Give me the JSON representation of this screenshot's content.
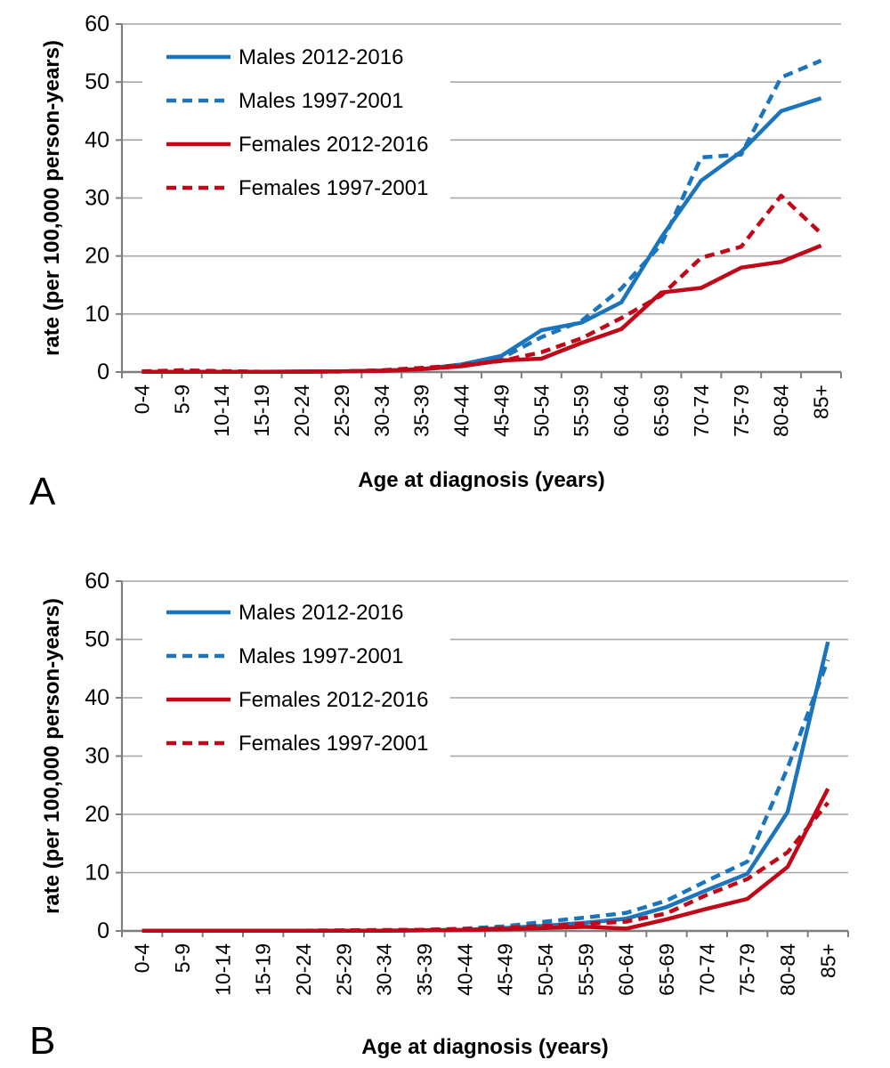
{
  "figure_title": "",
  "styles": {
    "blue": "#1B75BC",
    "red": "#C00818",
    "gridline_color": "#A6A6A6",
    "axis_color": "#7F7F7F",
    "text_color": "#000000",
    "legend_bg": "#FFFFFF"
  },
  "chart_data": [
    {
      "type": "line",
      "panel_label": "A",
      "xlabel": "Age at diagnosis (years)",
      "ylabel": "rate (per 100,000 person-years)",
      "ylim": [
        0,
        60
      ],
      "yticks": [
        0,
        10,
        20,
        30,
        40,
        50,
        60
      ],
      "grid": "horizontal-gridlines-on",
      "legend_position": "top-left-inside",
      "categories": [
        "0-4",
        "5-9",
        "10-14",
        "15-19",
        "20-24",
        "25-29",
        "30-34",
        "35-39",
        "40-44",
        "45-49",
        "50-54",
        "55-59",
        "60-64",
        "65-69",
        "70-74",
        "75-79",
        "80-84",
        "85+"
      ],
      "series": [
        {
          "name": "Males 2012-2016",
          "color": "#1B75BC",
          "dash": "solid",
          "values": [
            0.05,
            0.05,
            0.05,
            0.05,
            0.1,
            0.1,
            0.25,
            0.5,
            1.3,
            2.8,
            7.2,
            8.5,
            12.0,
            23.2,
            33.0,
            38.0,
            45.0,
            47.2
          ]
        },
        {
          "name": "Males 1997-2001",
          "color": "#1B75BC",
          "dash": "dashed",
          "values": [
            0.05,
            0.2,
            0.1,
            0.05,
            0.05,
            0.1,
            0.2,
            0.5,
            1.1,
            2.4,
            6.0,
            8.8,
            14.4,
            22.0,
            37.0,
            37.5,
            50.8,
            53.7
          ]
        },
        {
          "name": "Females 2012-2016",
          "color": "#C00818",
          "dash": "solid",
          "values": [
            0.05,
            0.05,
            0.05,
            0.05,
            0.05,
            0.1,
            0.2,
            0.5,
            1.0,
            2.0,
            2.3,
            5.0,
            7.4,
            13.7,
            14.5,
            18.0,
            19.0,
            21.8
          ]
        },
        {
          "name": "Females 1997-2001",
          "color": "#C00818",
          "dash": "dashed",
          "values": [
            0.1,
            0.3,
            0.15,
            0.05,
            0.05,
            0.1,
            0.3,
            0.7,
            1.2,
            1.9,
            3.4,
            5.8,
            9.3,
            13.2,
            19.7,
            21.6,
            30.4,
            23.9
          ]
        }
      ]
    },
    {
      "type": "line",
      "panel_label": "B",
      "xlabel": "Age at diagnosis (years)",
      "ylabel": "rate (per 100,000 person-years)",
      "ylim": [
        0,
        60
      ],
      "yticks": [
        0,
        10,
        20,
        30,
        40,
        50,
        60
      ],
      "grid": "horizontal-gridlines-on",
      "legend_position": "top-left-inside",
      "categories": [
        "0-4",
        "5-9",
        "10-14",
        "15-19",
        "20-24",
        "25-29",
        "30-34",
        "35-39",
        "40-44",
        "45-49",
        "50-54",
        "55-59",
        "60-64",
        "65-69",
        "70-74",
        "75-79",
        "80-84",
        "85+"
      ],
      "series": [
        {
          "name": "Males 2012-2016",
          "color": "#1B75BC",
          "dash": "solid",
          "values": [
            0.05,
            0.05,
            0.05,
            0.05,
            0.05,
            0.05,
            0.05,
            0.1,
            0.2,
            0.5,
            0.9,
            1.4,
            2.1,
            4.1,
            7.0,
            9.8,
            20.4,
            49.6
          ]
        },
        {
          "name": "Males 1997-2001",
          "color": "#1B75BC",
          "dash": "dashed",
          "values": [
            0.05,
            0.05,
            0.05,
            0.05,
            0.05,
            0.05,
            0.1,
            0.2,
            0.4,
            0.8,
            1.6,
            2.3,
            3.1,
            5.2,
            8.6,
            11.9,
            28.0,
            46.5
          ]
        },
        {
          "name": "Females 2012-2016",
          "color": "#C00818",
          "dash": "solid",
          "values": [
            0.05,
            0.05,
            0.05,
            0.05,
            0.05,
            0.05,
            0.05,
            0.1,
            0.15,
            0.3,
            0.5,
            0.7,
            0.4,
            2.0,
            3.8,
            5.5,
            11.0,
            24.4
          ]
        },
        {
          "name": "Females 1997-2001",
          "color": "#C00818",
          "dash": "dashed",
          "values": [
            0.05,
            0.05,
            0.05,
            0.05,
            0.05,
            0.1,
            0.15,
            0.2,
            0.3,
            0.5,
            0.9,
            1.2,
            1.6,
            3.0,
            6.2,
            8.9,
            13.5,
            22.0
          ]
        }
      ]
    }
  ]
}
